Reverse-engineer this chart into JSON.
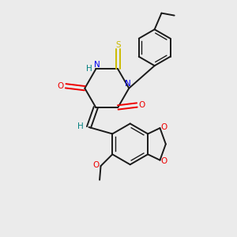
{
  "background_color": "#ebebeb",
  "bond_color": "#1a1a1a",
  "N_color": "#0000ee",
  "O_color": "#ee0000",
  "S_color": "#ccbb00",
  "H_color": "#008080",
  "figsize": [
    3.0,
    3.0
  ],
  "dpi": 100,
  "xlim": [
    0,
    10
  ],
  "ylim": [
    0,
    10
  ],
  "lw": 1.4,
  "lw_inner": 1.0,
  "fs": 7.5
}
